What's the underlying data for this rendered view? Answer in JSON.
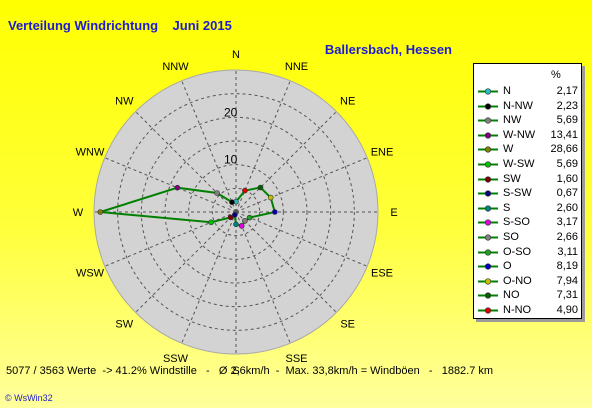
{
  "header": {
    "title": "Verteilung Windrichtung    Juni 2015",
    "location": "Ballersbach, Hessen"
  },
  "chart_data": {
    "type": "radar",
    "directions": [
      "N",
      "NNE",
      "NE",
      "ENE",
      "E",
      "ESE",
      "SE",
      "SSE",
      "S",
      "SSW",
      "SW",
      "WSW",
      "W",
      "WNW",
      "NW",
      "NNW"
    ],
    "radial_ticks": [
      "10",
      "20"
    ],
    "radial_max": 30,
    "series_color": "#008000",
    "values_by_direction": [
      2.17,
      4.9,
      7.31,
      7.94,
      8.19,
      3.11,
      2.66,
      3.17,
      2.6,
      0.67,
      1.6,
      5.69,
      28.66,
      13.41,
      5.69,
      2.23
    ],
    "legend_unit": "%",
    "legend": [
      {
        "name": "N",
        "value": "2,17",
        "color": "#20c0c0"
      },
      {
        "name": "N-NW",
        "value": "2,23",
        "color": "#000000"
      },
      {
        "name": "NW",
        "value": "5,69",
        "color": "#808080"
      },
      {
        "name": "W-NW",
        "value": "13,41",
        "color": "#800080"
      },
      {
        "name": "W",
        "value": "28,66",
        "color": "#808000"
      },
      {
        "name": "W-SW",
        "value": "5,69",
        "color": "#00c000"
      },
      {
        "name": "SW",
        "value": "1,60",
        "color": "#800000"
      },
      {
        "name": "S-SW",
        "value": "0,67",
        "color": "#000080"
      },
      {
        "name": "S",
        "value": "2,60",
        "color": "#008080"
      },
      {
        "name": "S-SO",
        "value": "3,17",
        "color": "#e000e0"
      },
      {
        "name": "SO",
        "value": "2,66",
        "color": "#808080"
      },
      {
        "name": "O-SO",
        "value": "3,11",
        "color": "#20a020"
      },
      {
        "name": "O",
        "value": "8,19",
        "color": "#0000c0"
      },
      {
        "name": "O-NO",
        "value": "7,94",
        "color": "#c0c000"
      },
      {
        "name": "NO",
        "value": "7,31",
        "color": "#006000"
      },
      {
        "name": "N-NO",
        "value": "4,90",
        "color": "#e00000"
      }
    ]
  },
  "footer": {
    "stats": "5077 / 3563 Werte  -> 41.2% Windstille   -   Ø 2,6km/h  -  Max. 33,8km/h = Windböen   -   1882.7 km",
    "credit": "© WsWin32"
  }
}
